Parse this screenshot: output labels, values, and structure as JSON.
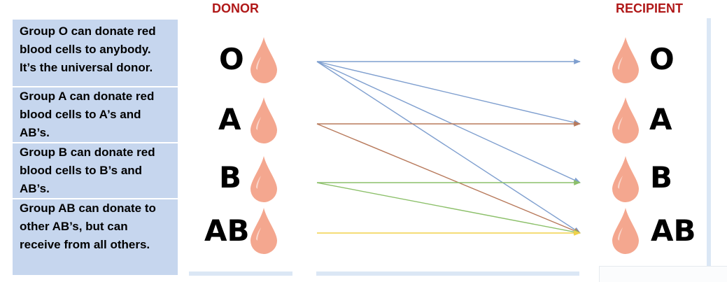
{
  "headers": {
    "donor": "DONOR",
    "recipient": "RECIPIENT"
  },
  "panels": [
    {
      "lines": [
        "Group O can donate red",
        "blood cells to anybody.",
        "It’s the universal donor."
      ]
    },
    {
      "lines": [
        "Group A can donate red",
        "blood cells to A’s and",
        "AB’s."
      ]
    },
    {
      "lines": [
        "Group B can donate red",
        "blood cells to B’s and",
        "AB’s."
      ]
    },
    {
      "lines": [
        "Group AB can donate to",
        "other AB’s, but can",
        "receive from all others."
      ]
    }
  ],
  "donors": [
    "O",
    "A",
    "B",
    "AB"
  ],
  "recipients": [
    "O",
    "A",
    "B",
    "AB"
  ],
  "links": [
    {
      "from": "O",
      "to": "O",
      "color": "#7f9fcf"
    },
    {
      "from": "O",
      "to": "A",
      "color": "#7f9fcf"
    },
    {
      "from": "O",
      "to": "B",
      "color": "#7f9fcf"
    },
    {
      "from": "O",
      "to": "AB",
      "color": "#7f9fcf"
    },
    {
      "from": "A",
      "to": "A",
      "color": "#b87a5c"
    },
    {
      "from": "A",
      "to": "AB",
      "color": "#b87a5c"
    },
    {
      "from": "B",
      "to": "B",
      "color": "#8cc06a"
    },
    {
      "from": "B",
      "to": "AB",
      "color": "#8cc06a"
    },
    {
      "from": "AB",
      "to": "AB",
      "color": "#f2d24a"
    }
  ],
  "colors": {
    "drop": "#f4a78f",
    "drop_highlight": "#ffffff",
    "panel": "#c6d6ee",
    "header": "#b01818"
  }
}
